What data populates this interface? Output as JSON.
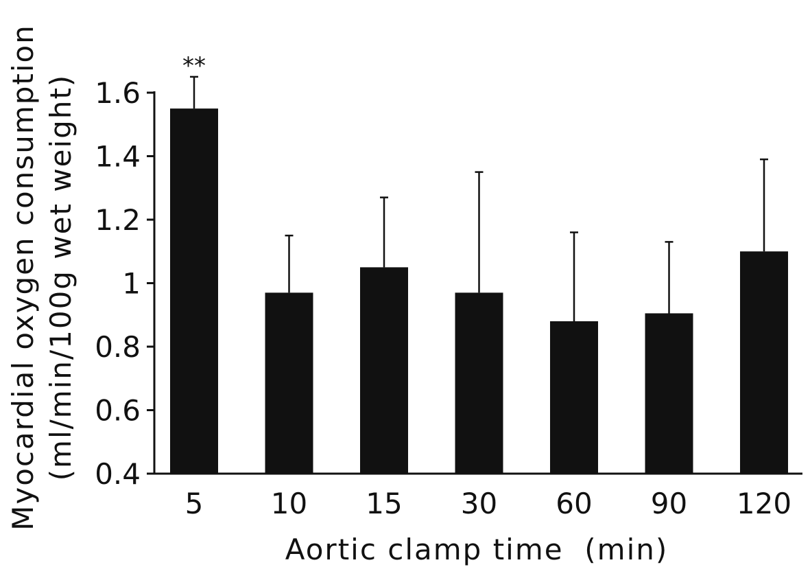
{
  "chart_data": {
    "type": "bar",
    "title": "",
    "xlabel": "Aortic clamp time  (min)",
    "ylabel_lines": [
      "Myocardial oxygen consumption",
      "(ml/min/100g wet weight)"
    ],
    "categories": [
      "5",
      "10",
      "15",
      "30",
      "60",
      "90",
      "120"
    ],
    "values": [
      1.55,
      0.97,
      1.05,
      0.97,
      0.88,
      0.905,
      1.1
    ],
    "errors": [
      0.1,
      0.18,
      0.22,
      0.38,
      0.28,
      0.225,
      0.29
    ],
    "ylim": [
      0.4,
      1.6
    ],
    "yticks": [
      0.4,
      0.6,
      0.8,
      1.0,
      1.2,
      1.4,
      1.6
    ],
    "ytick_labels": [
      "0.4",
      "0.6",
      "0.8",
      "1",
      "1.2",
      "1.4",
      "1.6"
    ],
    "annotations": [
      {
        "category": "5",
        "text": "**"
      }
    ],
    "bar_color": "#111111",
    "grid": false,
    "legend": "none"
  }
}
